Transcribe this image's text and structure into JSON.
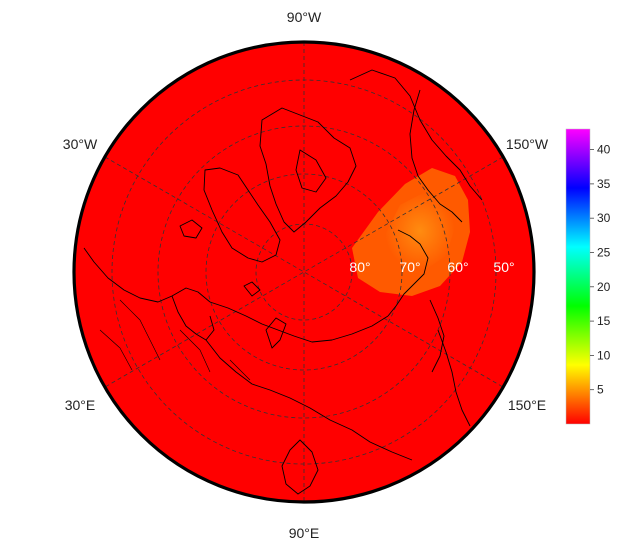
{
  "map": {
    "projection": "polar-orthographic",
    "background_field_color": "#ff0000",
    "coastline_color": "#000000",
    "graticule_color": "#333333",
    "anomaly": {
      "color_outer": "#ff5a00",
      "color_inner": "#ff8c10",
      "note": "warm patch near 70°N, 150°W side"
    }
  },
  "longitude_labels": {
    "top": "90°W",
    "upper_left": "30°W",
    "upper_right": "150°W",
    "lower_left": "30°E",
    "lower_right": "150°E",
    "bottom": "90°E"
  },
  "latitude_labels": [
    "80°",
    "70°",
    "60°",
    "50°"
  ],
  "colorbar": {
    "ticks": [
      "5",
      "10",
      "15",
      "20",
      "25",
      "30",
      "35",
      "40"
    ],
    "min": 0,
    "max": 43,
    "colors": [
      "#ff0000",
      "#ff8000",
      "#ffff00",
      "#80ff00",
      "#00ff00",
      "#00ff80",
      "#00ffff",
      "#0080ff",
      "#0000ff",
      "#8000ff",
      "#ff00ff"
    ]
  }
}
